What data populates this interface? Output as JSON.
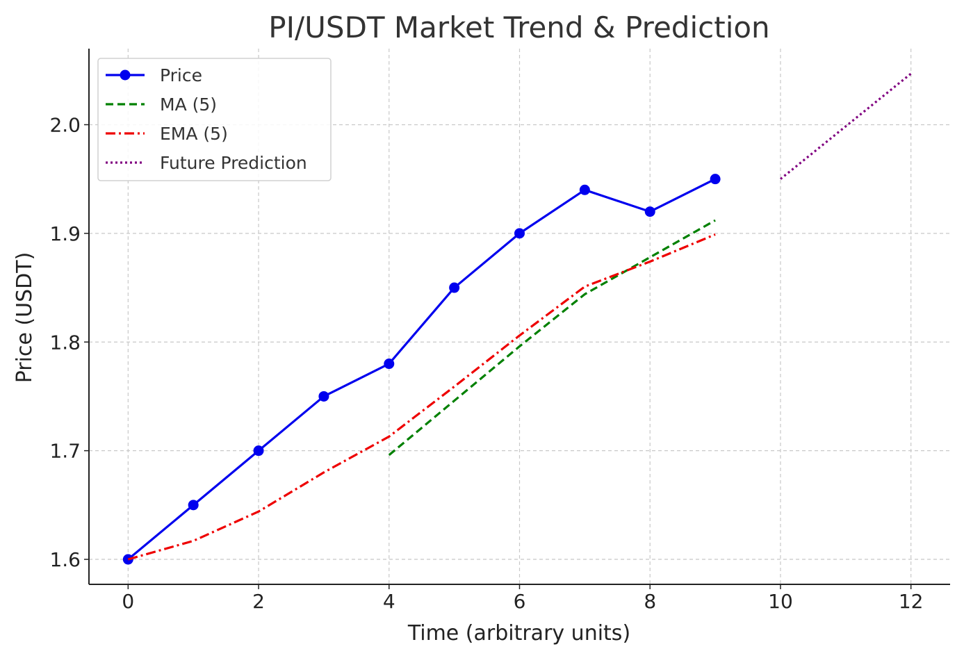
{
  "chart_data": {
    "type": "line",
    "title": "PI/USDT Market Trend & Prediction",
    "xlabel": "Time (arbitrary units)",
    "ylabel": "Price (USDT)",
    "xlim": [
      -0.6,
      12.6
    ],
    "ylim": [
      1.577,
      2.07
    ],
    "xticks": [
      0,
      2,
      4,
      6,
      8,
      10,
      12
    ],
    "yticks": [
      1.6,
      1.7,
      1.8,
      1.9,
      2.0
    ],
    "xtick_labels": [
      "0",
      "2",
      "4",
      "6",
      "8",
      "10",
      "12"
    ],
    "ytick_labels": [
      "1.6",
      "1.7",
      "1.8",
      "1.9",
      "2.0"
    ],
    "grid": true,
    "legend_position": "top-left",
    "series": [
      {
        "name": "Price",
        "color": "#0000ee",
        "style": "solid-markers",
        "x": [
          0,
          1,
          2,
          3,
          4,
          5,
          6,
          7,
          8,
          9
        ],
        "y": [
          1.6,
          1.65,
          1.7,
          1.75,
          1.78,
          1.85,
          1.9,
          1.94,
          1.92,
          1.95
        ]
      },
      {
        "name": "MA (5)",
        "color": "#008000",
        "style": "dashed",
        "x": [
          4,
          5,
          6,
          7,
          8,
          9
        ],
        "y": [
          1.696,
          1.746,
          1.796,
          1.844,
          1.878,
          1.912
        ]
      },
      {
        "name": "EMA (5)",
        "color": "#ee0000",
        "style": "dashdot",
        "x": [
          0,
          1,
          2,
          3,
          4,
          5,
          6,
          7,
          8,
          9
        ],
        "y": [
          1.6,
          1.617,
          1.644,
          1.68,
          1.713,
          1.759,
          1.806,
          1.851,
          1.874,
          1.899
        ]
      },
      {
        "name": "Future Prediction",
        "color": "#800080",
        "style": "dotted",
        "x": [
          10,
          11,
          12
        ],
        "y": [
          1.95,
          1.9985,
          2.047
        ]
      }
    ]
  }
}
